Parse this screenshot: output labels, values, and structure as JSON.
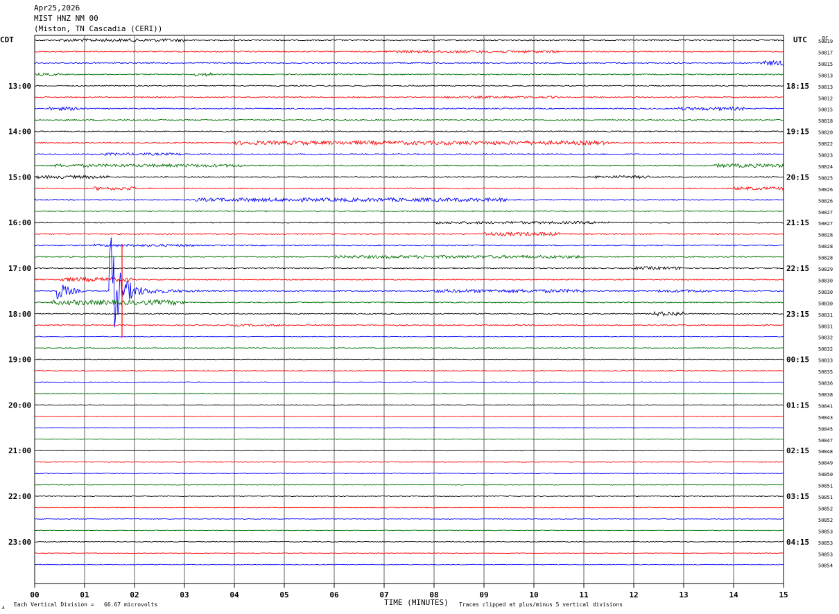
{
  "header": {
    "date": "Apr25,2026",
    "station": "MIST HNZ NM 00",
    "location": "(Miston, TN Cascadia (CERI))"
  },
  "footer": {
    "scale_note": "Each Vertical Division =   66.67 microvolts",
    "clip_note": "Traces clipped at plus/minus 5 vertical divisions",
    "corner_mark": "A"
  },
  "chart_data": {
    "type": "line",
    "subtype": "helicorder",
    "left_axis_label": "CDT",
    "right_axis_label": "UTC",
    "dc_label": "DC",
    "xlabel": "TIME (MINUTES)",
    "x_ticks": [
      "00",
      "01",
      "02",
      "03",
      "04",
      "05",
      "06",
      "07",
      "08",
      "09",
      "10",
      "11",
      "12",
      "13",
      "14",
      "15"
    ],
    "xlim": [
      0,
      15
    ],
    "trace_colors": [
      "#000000",
      "#ff0000",
      "#0000ff",
      "#007000"
    ],
    "cdt_labels": [
      "13:00",
      "14:00",
      "15:00",
      "16:00",
      "17:00",
      "18:00",
      "19:00",
      "20:00",
      "21:00",
      "22:00",
      "23:00"
    ],
    "utc_labels": [
      "18:15",
      "19:15",
      "20:15",
      "21:15",
      "22:15",
      "23:15",
      "00:15",
      "01:15",
      "02:15",
      "03:15",
      "04:15"
    ],
    "dc_offsets": [
      "50819",
      "50817",
      "50815",
      "50813",
      "50813",
      "50812",
      "50815",
      "50818",
      "50820",
      "50822",
      "50823",
      "50824",
      "50825",
      "50826",
      "50826",
      "50827",
      "50827",
      "50828",
      "50828",
      "50828",
      "50829",
      "50830",
      "50830",
      "50830",
      "50831",
      "50831",
      "50832",
      "50832",
      "50833",
      "50835",
      "50836",
      "50838",
      "50841",
      "50843",
      "50845",
      "50847",
      "50848",
      "50849",
      "50850",
      "50851",
      "50851",
      "50852",
      "50852",
      "50853",
      "50853",
      "50853",
      "50854"
    ],
    "grid": true,
    "rows": 47
  }
}
